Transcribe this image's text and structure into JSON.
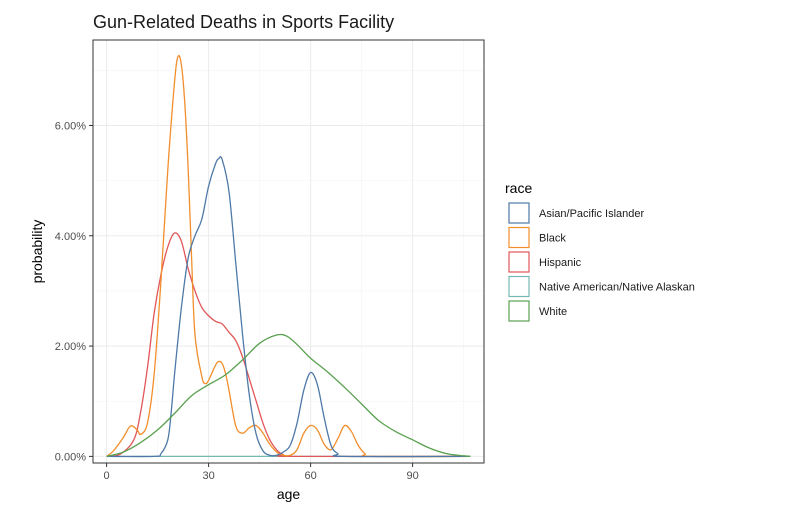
{
  "chart_data": {
    "type": "line",
    "title": "Gun-Related Deaths in Sports Facility",
    "xlabel": "age",
    "ylabel": "probability",
    "xlim": [
      -4,
      111
    ],
    "ylim": [
      -0.0012,
      0.0755
    ],
    "x_ticks": [
      0,
      30,
      60,
      90
    ],
    "x_tick_labels": [
      "0",
      "30",
      "60",
      "90"
    ],
    "y_ticks": [
      0,
      0.02,
      0.04,
      0.06
    ],
    "y_tick_labels": [
      "0.00%",
      "2.00%",
      "4.00%",
      "6.00%"
    ],
    "grid": true,
    "legend": {
      "title": "race",
      "position": "right"
    },
    "series": [
      {
        "name": "Asian/Pacific Islander",
        "color": "#4e79a7",
        "points": [
          [
            0,
            0
          ],
          [
            14,
            0
          ],
          [
            16,
            0.0005
          ],
          [
            18,
            0.003
          ],
          [
            19,
            0.008
          ],
          [
            20,
            0.015
          ],
          [
            22,
            0.027
          ],
          [
            24,
            0.036
          ],
          [
            26,
            0.04
          ],
          [
            28,
            0.043
          ],
          [
            30,
            0.049
          ],
          [
            32,
            0.053
          ],
          [
            33,
            0.054
          ],
          [
            34,
            0.0538
          ],
          [
            36,
            0.048
          ],
          [
            38,
            0.035
          ],
          [
            40,
            0.022
          ],
          [
            42,
            0.011
          ],
          [
            44,
            0.004
          ],
          [
            46,
            0.001
          ],
          [
            48,
            0.0002
          ],
          [
            50,
            0.0002
          ],
          [
            52,
            0.0008
          ],
          [
            54,
            0.002
          ],
          [
            56,
            0.006
          ],
          [
            58,
            0.012
          ],
          [
            60,
            0.0152
          ],
          [
            62,
            0.013
          ],
          [
            64,
            0.007
          ],
          [
            66,
            0.002
          ],
          [
            68,
            0.0005
          ],
          [
            70,
            0
          ],
          [
            107,
            0
          ]
        ]
      },
      {
        "name": "Black",
        "color": "#f28e2b",
        "points": [
          [
            0,
            0
          ],
          [
            2,
            0.001
          ],
          [
            5,
            0.0035
          ],
          [
            7,
            0.0055
          ],
          [
            9,
            0.0048
          ],
          [
            10,
            0.004
          ],
          [
            12,
            0.006
          ],
          [
            14,
            0.015
          ],
          [
            16,
            0.032
          ],
          [
            18,
            0.052
          ],
          [
            20,
            0.068
          ],
          [
            21,
            0.0725
          ],
          [
            22,
            0.071
          ],
          [
            23,
            0.064
          ],
          [
            24,
            0.052
          ],
          [
            25,
            0.036
          ],
          [
            26,
            0.022
          ],
          [
            28,
            0.0145
          ],
          [
            29,
            0.0132
          ],
          [
            30,
            0.0138
          ],
          [
            32,
            0.0165
          ],
          [
            33,
            0.0172
          ],
          [
            34,
            0.0168
          ],
          [
            35,
            0.015
          ],
          [
            36,
            0.012
          ],
          [
            38,
            0.0055
          ],
          [
            40,
            0.0042
          ],
          [
            42,
            0.0052
          ],
          [
            44,
            0.0056
          ],
          [
            46,
            0.0042
          ],
          [
            48,
            0.0022
          ],
          [
            50,
            0.0008
          ],
          [
            52,
            0.0002
          ],
          [
            54,
            0.0002
          ],
          [
            56,
            0.0012
          ],
          [
            58,
            0.0042
          ],
          [
            60,
            0.0056
          ],
          [
            62,
            0.0048
          ],
          [
            64,
            0.0022
          ],
          [
            66,
            0.0012
          ],
          [
            68,
            0.0032
          ],
          [
            70,
            0.0056
          ],
          [
            72,
            0.0045
          ],
          [
            74,
            0.002
          ],
          [
            76,
            0.0005
          ],
          [
            78,
            0
          ],
          [
            107,
            0
          ]
        ]
      },
      {
        "name": "Hispanic",
        "color": "#e15759",
        "points": [
          [
            0,
            0
          ],
          [
            4,
            0.0004
          ],
          [
            8,
            0.003
          ],
          [
            10,
            0.008
          ],
          [
            12,
            0.016
          ],
          [
            14,
            0.026
          ],
          [
            16,
            0.033
          ],
          [
            18,
            0.038
          ],
          [
            20,
            0.0405
          ],
          [
            22,
            0.039
          ],
          [
            24,
            0.034
          ],
          [
            26,
            0.03
          ],
          [
            28,
            0.027
          ],
          [
            30,
            0.0255
          ],
          [
            32,
            0.0245
          ],
          [
            34,
            0.024
          ],
          [
            36,
            0.0225
          ],
          [
            38,
            0.021
          ],
          [
            40,
            0.018
          ],
          [
            42,
            0.014
          ],
          [
            44,
            0.01
          ],
          [
            46,
            0.006
          ],
          [
            48,
            0.003
          ],
          [
            50,
            0.0012
          ],
          [
            52,
            0.0003
          ],
          [
            55,
            0
          ],
          [
            107,
            0
          ]
        ]
      },
      {
        "name": "Native American/Native Alaskan",
        "color": "#76b7b2",
        "points": [
          [
            0,
            0
          ],
          [
            107,
            0
          ]
        ]
      },
      {
        "name": "White",
        "color": "#59a14f",
        "points": [
          [
            0,
            0
          ],
          [
            5,
            0.0008
          ],
          [
            10,
            0.0025
          ],
          [
            15,
            0.0048
          ],
          [
            20,
            0.0078
          ],
          [
            25,
            0.011
          ],
          [
            30,
            0.013
          ],
          [
            35,
            0.0148
          ],
          [
            40,
            0.0175
          ],
          [
            45,
            0.0205
          ],
          [
            50,
            0.022
          ],
          [
            53,
            0.0218
          ],
          [
            56,
            0.0203
          ],
          [
            60,
            0.0178
          ],
          [
            65,
            0.0153
          ],
          [
            70,
            0.0125
          ],
          [
            75,
            0.0095
          ],
          [
            80,
            0.0065
          ],
          [
            85,
            0.0045
          ],
          [
            90,
            0.003
          ],
          [
            95,
            0.0015
          ],
          [
            100,
            0.0005
          ],
          [
            105,
            0.0001
          ],
          [
            107,
            0
          ]
        ]
      }
    ]
  }
}
